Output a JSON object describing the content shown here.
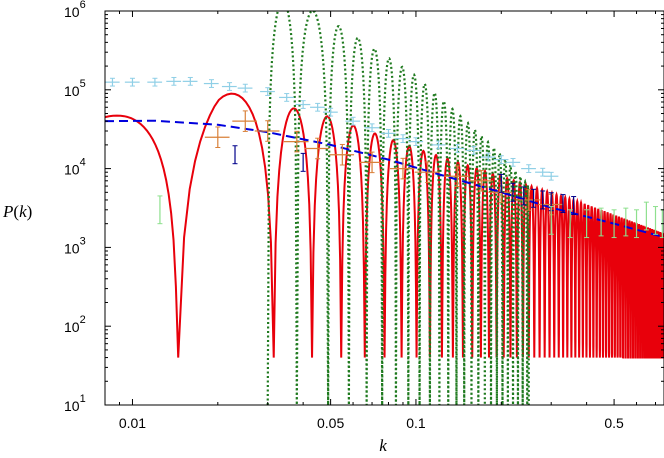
{
  "chart_data": {
    "type": "line",
    "xscale": "log",
    "yscale": "log",
    "xlim": [
      0.008,
      0.75
    ],
    "ylim": [
      10,
      1000000
    ],
    "grid": false,
    "legend": "none",
    "xlabel": "k",
    "ylabel": {
      "p": "P",
      "open": "(",
      "var": "k",
      "close": ")"
    },
    "x_ticks": [
      {
        "value": 0.01,
        "label": "0.01"
      },
      {
        "value": 0.05,
        "label": "0.05"
      },
      {
        "value": 0.1,
        "label": "0.1"
      },
      {
        "value": 0.5,
        "label": "0.5"
      }
    ],
    "y_ticks": [
      {
        "value": 10,
        "base": "10",
        "exp": "1"
      },
      {
        "value": 100,
        "base": "10",
        "exp": "2"
      },
      {
        "value": 1000,
        "base": "10",
        "exp": "3"
      },
      {
        "value": 10000,
        "base": "10",
        "exp": "4"
      },
      {
        "value": 100000,
        "base": "10",
        "exp": "5"
      },
      {
        "value": 1000000,
        "base": "10",
        "exp": "6"
      }
    ],
    "series": [
      {
        "style": "solid",
        "color": "#e8000b",
        "envelope": [
          [
            0.008,
            45000
          ],
          [
            0.02,
            100000
          ],
          [
            0.03,
            70000
          ],
          [
            0.05,
            45000
          ],
          [
            0.1,
            18000
          ],
          [
            0.2,
            8000
          ],
          [
            0.4,
            3500
          ],
          [
            0.75,
            1500
          ]
        ],
        "zeros": [
          0.0145,
          0.0315,
          0.043,
          0.0545,
          0.066,
          0.0775,
          0.089,
          0.1005,
          0.112,
          0.1235,
          0.135,
          0.1465,
          0.158,
          0.1695,
          0.181,
          0.1925,
          0.204,
          0.2155,
          0.227,
          0.2385,
          0.25,
          0.2615,
          0.273,
          0.2845,
          0.296,
          0.3075,
          0.319,
          0.3305,
          0.342,
          0.3535,
          0.365,
          0.3765,
          0.388,
          0.3995,
          0.411,
          0.4225,
          0.434,
          0.4455,
          0.457,
          0.4685,
          0.48,
          0.4915,
          0.503,
          0.5145,
          0.526,
          0.5375,
          0.549,
          0.5605,
          0.572,
          0.5835,
          0.595,
          0.6065,
          0.618,
          0.6295,
          0.641,
          0.6525,
          0.664,
          0.6755,
          0.687,
          0.6985,
          0.71,
          0.7215,
          0.733,
          0.7445
        ],
        "zero_depth": 40
      },
      {
        "style": "dotted",
        "color": "#1f7a1f",
        "envelope": [
          [
            0.03,
            1500000
          ],
          [
            0.04,
            1200000
          ],
          [
            0.06,
            500000
          ],
          [
            0.1,
            150000
          ],
          [
            0.15,
            40000
          ],
          [
            0.2,
            15000
          ],
          [
            0.25,
            6000
          ]
        ],
        "zeros": [
          0.038,
          0.049,
          0.058,
          0.067,
          0.076,
          0.085,
          0.094,
          0.103,
          0.112,
          0.121,
          0.13,
          0.139,
          0.148,
          0.157,
          0.166,
          0.175,
          0.184,
          0.193,
          0.202,
          0.211,
          0.22,
          0.229,
          0.238,
          0.247
        ],
        "range": [
          0.03,
          0.25
        ],
        "zero_depth": 10
      },
      {
        "style": "dashed",
        "color": "#0000dd",
        "x": [
          0.008,
          0.012,
          0.02,
          0.03,
          0.05,
          0.08,
          0.12,
          0.2,
          0.3,
          0.5,
          0.75
        ],
        "y": [
          40000,
          40500,
          36000,
          29000,
          20000,
          13000,
          8500,
          5000,
          3200,
          2000,
          1350
        ]
      }
    ],
    "error_bars": [
      {
        "color": "#8fcfe6",
        "points": [
          [
            0.0085,
            125000
          ],
          [
            0.01,
            125000
          ],
          [
            0.012,
            125000
          ],
          [
            0.014,
            128000
          ],
          [
            0.016,
            128000
          ],
          [
            0.019,
            120000
          ],
          [
            0.022,
            110000
          ],
          [
            0.025,
            105000
          ],
          [
            0.03,
            95000
          ],
          [
            0.035,
            80000
          ],
          [
            0.04,
            65000
          ],
          [
            0.045,
            60000
          ],
          [
            0.05,
            52000
          ],
          [
            0.06,
            40000
          ],
          [
            0.07,
            33000
          ],
          [
            0.08,
            28000
          ],
          [
            0.09,
            24000
          ],
          [
            0.1,
            22000
          ],
          [
            0.12,
            20000
          ],
          [
            0.14,
            18000
          ],
          [
            0.16,
            17000
          ],
          [
            0.18,
            14000
          ],
          [
            0.2,
            13000
          ],
          [
            0.22,
            12000
          ],
          [
            0.25,
            10000
          ],
          [
            0.28,
            9000
          ],
          [
            0.3,
            8000
          ]
        ],
        "rel_err": 0.12,
        "x_half_width": 0.06
      },
      {
        "color": "#d98038",
        "points": [
          [
            0.02,
            25000
          ],
          [
            0.025,
            40000
          ],
          [
            0.03,
            30000
          ],
          [
            0.038,
            22000
          ],
          [
            0.045,
            18000
          ],
          [
            0.055,
            15000
          ],
          [
            0.07,
            12000
          ],
          [
            0.09,
            10000
          ],
          [
            0.11,
            9000
          ],
          [
            0.14,
            8000
          ],
          [
            0.17,
            7000
          ],
          [
            0.2,
            5000
          ],
          [
            0.25,
            4000
          ],
          [
            0.3,
            3500
          ]
        ],
        "rel_err": 0.35,
        "x_half_width": 0.1
      },
      {
        "color": "#00008b",
        "points": [
          [
            0.023,
            15000
          ],
          [
            0.04,
            12000
          ],
          [
            0.2,
            6500
          ],
          [
            0.22,
            5000
          ],
          [
            0.24,
            4500
          ],
          [
            0.26,
            4200
          ],
          [
            0.28,
            4000
          ],
          [
            0.3,
            3800
          ],
          [
            0.33,
            3600
          ],
          [
            0.36,
            3400
          ]
        ],
        "rel_err": 0.3,
        "x_half_width": 0
      },
      {
        "color": "#8ee08e",
        "points": [
          [
            0.0125,
            3000
          ],
          [
            0.3,
            2200
          ],
          [
            0.35,
            2000
          ],
          [
            0.4,
            2000
          ],
          [
            0.45,
            2100
          ],
          [
            0.5,
            2000
          ],
          [
            0.55,
            2100
          ],
          [
            0.6,
            2000
          ],
          [
            0.65,
            2500
          ],
          [
            0.7,
            2200
          ],
          [
            0.74,
            2000
          ]
        ],
        "rel_err": 0.5,
        "x_half_width": 0
      }
    ]
  }
}
